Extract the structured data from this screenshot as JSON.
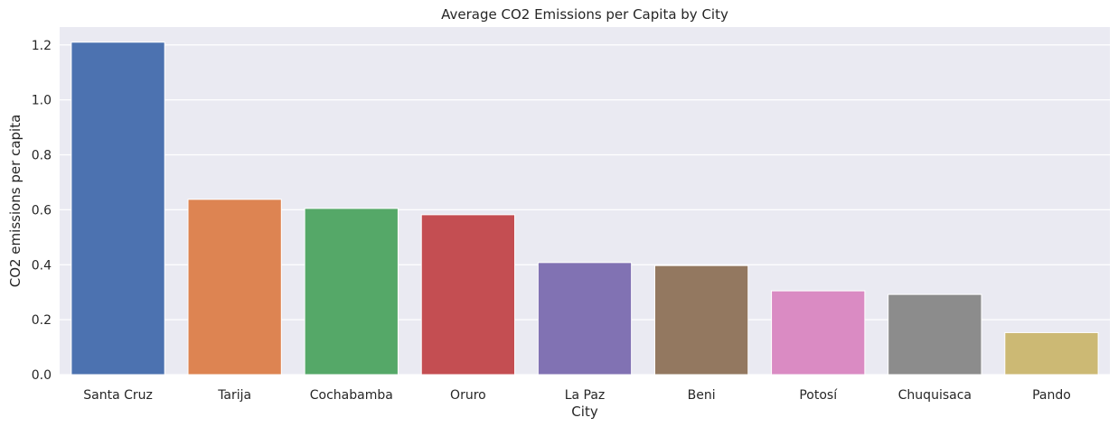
{
  "chart_data": {
    "type": "bar",
    "title": "Average CO2 Emissions per Capita by City",
    "xlabel": "City",
    "ylabel": "CO2 emissions per capita",
    "categories": [
      "Santa Cruz",
      "Tarija",
      "Cochabamba",
      "Oruro",
      "La Paz",
      "Beni",
      "Potosí",
      "Chuquisaca",
      "Pando"
    ],
    "values": [
      1.21,
      0.638,
      0.605,
      0.582,
      0.408,
      0.397,
      0.305,
      0.292,
      0.153
    ],
    "colors": [
      "#4c72b0",
      "#dd8452",
      "#55a868",
      "#c44e52",
      "#8172b3",
      "#937860",
      "#da8bc3",
      "#8c8c8c",
      "#ccb974"
    ],
    "ylim": [
      0,
      1.265
    ],
    "yticks": [
      0.0,
      0.2,
      0.4,
      0.6,
      0.8,
      1.0,
      1.2
    ],
    "ytick_labels": [
      "0.0",
      "0.2",
      "0.4",
      "0.6",
      "0.8",
      "1.0",
      "1.2"
    ],
    "grid": true,
    "background": "#eaeaf2",
    "grid_color": "#ffffff"
  }
}
